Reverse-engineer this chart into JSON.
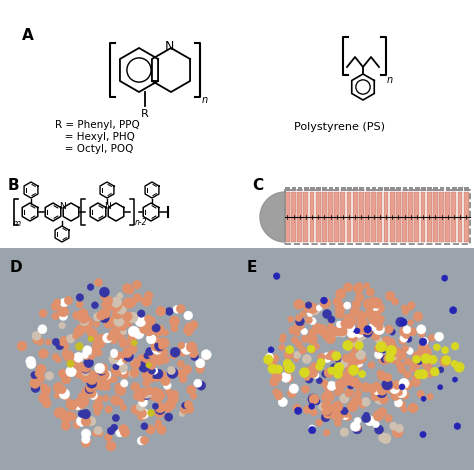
{
  "title": "",
  "background_color": "#ffffff",
  "label_A": "A",
  "label_B": "B",
  "label_C": "C",
  "label_D": "D",
  "label_E": "E",
  "text_R_lines": [
    "R = Phenyl, PPQ",
    "   = Hexyl, PHQ",
    "   = Octyl, POQ"
  ],
  "text_PS": "Polystyrene (PS)",
  "panel_bg_D": "#9ba4ad",
  "panel_bg_E": "#9ba4ad",
  "salmon_color": "#e8a090",
  "gray_color": "#909090",
  "dashed_color": "#808080",
  "line_color": "#000000",
  "schematic_bg": "#f5d0c0"
}
